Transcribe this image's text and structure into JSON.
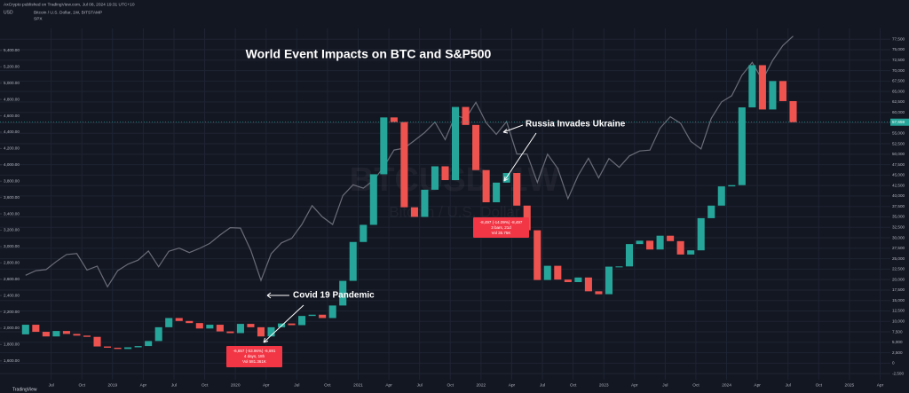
{
  "chart_data": {
    "type": "candlestick",
    "title": "World Event Impacts on BTC and S&P500",
    "publisher": "AxCrypto published on TradingView.com, Jul 08, 2024 19:31 UTC+10",
    "currency": "USD",
    "watermark": {
      "symbol": "BTCUSD, 1W",
      "description": "Bitcoin / U.S. Dollar"
    },
    "brand": "TradingView",
    "annotations": [
      "Russia Invades Ukraine",
      "Covid 19 Pandemic"
    ],
    "measure_boxes": [
      [
        "-6,657 (-53.96%) -6,691",
        "4 days, 18h",
        "Vol 581.361K"
      ],
      [
        "-8,497 (-14.09%) -8,497",
        "3 bars, 21d",
        "Vol 35.75K"
      ]
    ],
    "x": [
      "2018-04",
      "2018-05",
      "2018-06",
      "2018-07",
      "2018-08",
      "2018-09",
      "2018-10",
      "2018-11",
      "2018-12",
      "2019-01",
      "2019-02",
      "2019-03",
      "2019-04",
      "2019-05",
      "2019-06",
      "2019-07",
      "2019-08",
      "2019-09",
      "2019-10",
      "2019-11",
      "2019-12",
      "2020-01",
      "2020-02",
      "2020-03",
      "2020-04",
      "2020-05",
      "2020-06",
      "2020-07",
      "2020-08",
      "2020-09",
      "2020-10",
      "2020-11",
      "2020-12",
      "2021-01",
      "2021-02",
      "2021-03",
      "2021-04",
      "2021-05",
      "2021-06",
      "2021-07",
      "2021-08",
      "2021-09",
      "2021-10",
      "2021-11",
      "2021-12",
      "2022-01",
      "2022-02",
      "2022-03",
      "2022-04",
      "2022-05",
      "2022-06",
      "2022-07",
      "2022-08",
      "2022-09",
      "2022-10",
      "2022-11",
      "2022-12",
      "2023-01",
      "2023-02",
      "2023-03",
      "2023-04",
      "2023-05",
      "2023-06",
      "2023-07",
      "2023-08",
      "2023-09",
      "2023-10",
      "2023-11",
      "2023-12",
      "2024-01",
      "2024-02",
      "2024-03",
      "2024-04",
      "2024-05",
      "2024-06",
      "2024-07"
    ],
    "xlim": [
      "2018-02",
      "2025-05"
    ],
    "xticks": [
      {
        "value": "2018-07",
        "label": "Jul"
      },
      {
        "value": "2018-10",
        "label": "Oct"
      },
      {
        "value": "2019-01",
        "label": "2019"
      },
      {
        "value": "2019-04",
        "label": "Apr"
      },
      {
        "value": "2019-07",
        "label": "Jul"
      },
      {
        "value": "2019-10",
        "label": "Oct"
      },
      {
        "value": "2020-01",
        "label": "2020"
      },
      {
        "value": "2020-04",
        "label": "Apr"
      },
      {
        "value": "2020-07",
        "label": "Jul"
      },
      {
        "value": "2020-10",
        "label": "Oct"
      },
      {
        "value": "2021-01",
        "label": "2021"
      },
      {
        "value": "2021-04",
        "label": "Apr"
      },
      {
        "value": "2021-07",
        "label": "Jul"
      },
      {
        "value": "2021-10",
        "label": "Oct"
      },
      {
        "value": "2022-01",
        "label": "2022"
      },
      {
        "value": "2022-04",
        "label": "Apr"
      },
      {
        "value": "2022-07",
        "label": "Jul"
      },
      {
        "value": "2022-10",
        "label": "Oct"
      },
      {
        "value": "2023-01",
        "label": "2023"
      },
      {
        "value": "2023-04",
        "label": "Apr"
      },
      {
        "value": "2023-07",
        "label": "Jul"
      },
      {
        "value": "2023-10",
        "label": "Oct"
      },
      {
        "value": "2024-01",
        "label": "2024"
      },
      {
        "value": "2024-04",
        "label": "Apr"
      },
      {
        "value": "2024-07",
        "label": "Jul"
      },
      {
        "value": "2024-10",
        "label": "Oct"
      },
      {
        "value": "2025-01",
        "label": "2025"
      },
      {
        "value": "2025-04",
        "label": "Apr"
      }
    ],
    "ylim": [
      1370,
      5670
    ],
    "yticks": [
      {
        "value": 5400,
        "label": "5,400.00"
      },
      {
        "value": 5200,
        "label": "5,200.00"
      },
      {
        "value": 5000,
        "label": "5,000.00"
      },
      {
        "value": 4800,
        "label": "4,800.00"
      },
      {
        "value": 4600,
        "label": "4,600.00"
      },
      {
        "value": 4400,
        "label": "4,400.00"
      },
      {
        "value": 4200,
        "label": "4,200.00"
      },
      {
        "value": 4000,
        "label": "4,000.00"
      },
      {
        "value": 3800,
        "label": "3,800.00"
      },
      {
        "value": 3600,
        "label": "3,600.00"
      },
      {
        "value": 3400,
        "label": "3,400.00"
      },
      {
        "value": 3200,
        "label": "3,200.00"
      },
      {
        "value": 3000,
        "label": "3,000.00"
      },
      {
        "value": 2800,
        "label": "2,800.00"
      },
      {
        "value": 2600,
        "label": "2,600.00"
      },
      {
        "value": 2400,
        "label": "2,400.00"
      },
      {
        "value": 2200,
        "label": "2,200.00"
      },
      {
        "value": 2000,
        "label": "2,000.00"
      },
      {
        "value": 1800,
        "label": "1,800.00"
      },
      {
        "value": 1600,
        "label": "1,600.00"
      }
    ],
    "y2lim": [
      -3950,
      80100
    ],
    "y2ticks": [
      {
        "value": 77500,
        "label": "77,500"
      },
      {
        "value": 75000,
        "label": "75,000"
      },
      {
        "value": 72500,
        "label": "72,500"
      },
      {
        "value": 70000,
        "label": "70,000"
      },
      {
        "value": 67500,
        "label": "67,500"
      },
      {
        "value": 65000,
        "label": "65,000"
      },
      {
        "value": 62500,
        "label": "62,500"
      },
      {
        "value": 60000,
        "label": "60,000"
      },
      {
        "value": 57500,
        "label": "57,500"
      },
      {
        "value": 55000,
        "label": "55,000"
      },
      {
        "value": 52500,
        "label": "52,500"
      },
      {
        "value": 50000,
        "label": "50,000"
      },
      {
        "value": 47500,
        "label": "47,500"
      },
      {
        "value": 45000,
        "label": "45,000"
      },
      {
        "value": 42500,
        "label": "42,500"
      },
      {
        "value": 40000,
        "label": "40,000"
      },
      {
        "value": 37500,
        "label": "37,500"
      },
      {
        "value": 35000,
        "label": "35,000"
      },
      {
        "value": 32500,
        "label": "32,500"
      },
      {
        "value": 30000,
        "label": "30,000"
      },
      {
        "value": 27500,
        "label": "27,500"
      },
      {
        "value": 25000,
        "label": "25,000"
      },
      {
        "value": 22500,
        "label": "22,500"
      },
      {
        "value": 20000,
        "label": "20,000"
      },
      {
        "value": 17500,
        "label": "17,500"
      },
      {
        "value": 15000,
        "label": "15,000"
      },
      {
        "value": 12500,
        "label": "12,500"
      },
      {
        "value": 10000,
        "label": "10,000"
      },
      {
        "value": 7500,
        "label": "7,500"
      },
      {
        "value": 5000,
        "label": "5,000"
      },
      {
        "value": 2500,
        "label": "2,500"
      },
      0,
      {
        "value": -2500,
        "label": "-2,500"
      }
    ],
    "grid": true,
    "last_price": {
      "value": 57659,
      "label": "57,659"
    },
    "series": [
      {
        "name": "Bitcoin / U.S. Dollar, 1W, BITSTAMP",
        "type": "candlestick",
        "axis": "y2",
        "up_color": "#26a69a",
        "down_color": "#ef5350",
        "open": [
          6900,
          9200,
          7500,
          6400,
          7700,
          7000,
          6600,
          6300,
          4000,
          3700,
          3400,
          3800,
          4100,
          5300,
          8600,
          10800,
          10100,
          9600,
          8300,
          9200,
          7600,
          7200,
          9400,
          8600,
          6400,
          8600,
          9500,
          9100,
          11300,
          11600,
          10800,
          13800,
          19700,
          29000,
          33100,
          45200,
          58800,
          57700,
          37300,
          35000,
          41500,
          47100,
          43800,
          61300,
          57000,
          46200,
          38500,
          43200,
          45500,
          37700,
          31800,
          19900,
          23300,
          20000,
          19400,
          20500,
          17200,
          16500,
          23100,
          23150,
          28500,
          29300,
          27200,
          30500,
          29200,
          26000,
          27000,
          34700,
          37700,
          42300,
          42600,
          61200,
          71300,
          60700,
          67500,
          62700
        ],
        "close": [
          9200,
          7500,
          6400,
          7700,
          7000,
          6600,
          6300,
          4000,
          3700,
          3400,
          3800,
          4100,
          5300,
          8600,
          10800,
          10100,
          9600,
          8300,
          9200,
          7600,
          7200,
          9400,
          8600,
          6400,
          8600,
          9500,
          9100,
          11300,
          11600,
          10800,
          13800,
          19700,
          29000,
          33100,
          45200,
          58800,
          57700,
          37300,
          35000,
          41500,
          47100,
          43800,
          61300,
          57000,
          46200,
          38500,
          43200,
          45500,
          37700,
          31800,
          19900,
          23300,
          20000,
          19400,
          20500,
          17200,
          16500,
          23100,
          23150,
          28500,
          29300,
          27200,
          30500,
          29200,
          26000,
          27000,
          34700,
          37700,
          42300,
          42600,
          61200,
          71300,
          60700,
          67500,
          62700,
          57659
        ]
      },
      {
        "name": "SPX",
        "type": "line",
        "color": "#6a6d78",
        "values": [
          2648,
          2705,
          2718,
          2816,
          2902,
          2914,
          2712,
          2760,
          2507,
          2704,
          2784,
          2834,
          2946,
          2752,
          2942,
          2980,
          2926,
          2977,
          3038,
          3141,
          3231,
          3226,
          2954,
          2585,
          2912,
          3044,
          3100,
          3271,
          3500,
          3363,
          3270,
          3622,
          3756,
          3714,
          3811,
          3973,
          4181,
          4204,
          4298,
          4395,
          4523,
          4308,
          4605,
          4567,
          4766,
          4516,
          4374,
          4530,
          4132,
          4132,
          3785,
          4130,
          3955,
          3586,
          3872,
          4080,
          3840,
          4077,
          3970,
          4109,
          4169,
          4180,
          4450,
          4589,
          4508,
          4288,
          4194,
          4568,
          4770,
          4846,
          5096,
          5254,
          5036,
          5278,
          5460,
          5576
        ]
      }
    ]
  }
}
